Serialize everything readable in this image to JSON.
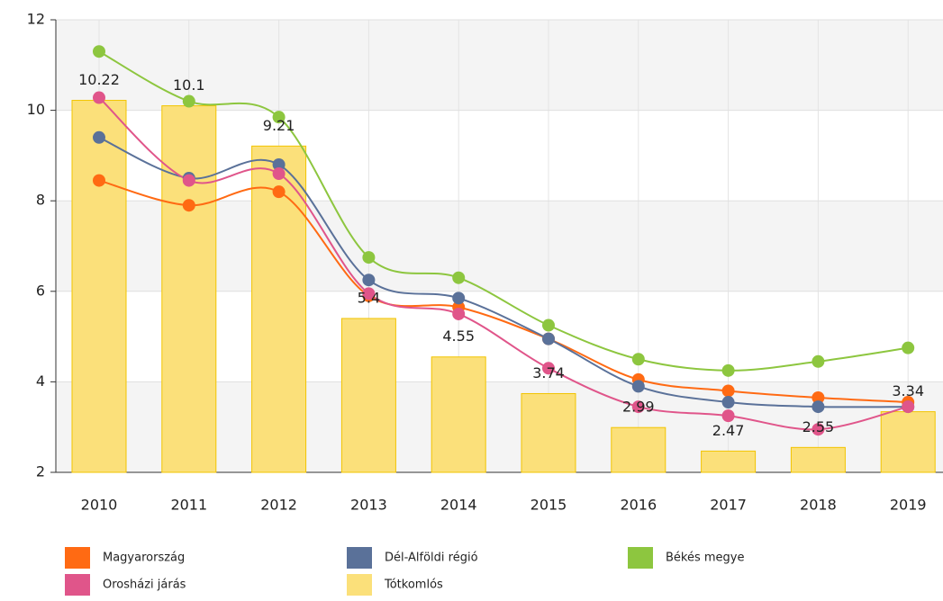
{
  "chart_data": {
    "type": "bar_line",
    "categories": [
      "2010",
      "2011",
      "2012",
      "2013",
      "2014",
      "2015",
      "2016",
      "2017",
      "2018",
      "2019"
    ],
    "ylim": [
      2,
      12
    ],
    "yticks": [
      2,
      4,
      6,
      8,
      10,
      12
    ],
    "grid": true,
    "bars": {
      "name": "Tótkomlós",
      "color": "#fbe07a",
      "stroke": "#f2c400",
      "values": [
        10.22,
        10.1,
        9.21,
        5.4,
        4.55,
        3.74,
        2.99,
        2.47,
        2.55,
        3.34
      ]
    },
    "series": [
      {
        "name": "Magyarország",
        "color": "#ff6a13",
        "values": [
          8.45,
          7.9,
          8.2,
          5.9,
          5.65,
          4.95,
          4.05,
          3.8,
          3.65,
          3.55
        ]
      },
      {
        "name": "Dél-Alföldi régió",
        "color": "#5a7199",
        "values": [
          9.4,
          8.5,
          8.8,
          6.25,
          5.85,
          4.95,
          3.9,
          3.55,
          3.45,
          3.45
        ]
      },
      {
        "name": "Békés megye",
        "color": "#8dc63f",
        "values": [
          11.3,
          10.2,
          9.85,
          6.75,
          6.3,
          5.25,
          4.5,
          4.25,
          4.45,
          4.75
        ]
      },
      {
        "name": "Orosházi járás",
        "color": "#e0558a",
        "values": [
          10.28,
          8.45,
          8.6,
          5.95,
          5.5,
          4.3,
          3.45,
          3.25,
          2.95,
          3.45
        ]
      }
    ]
  }
}
